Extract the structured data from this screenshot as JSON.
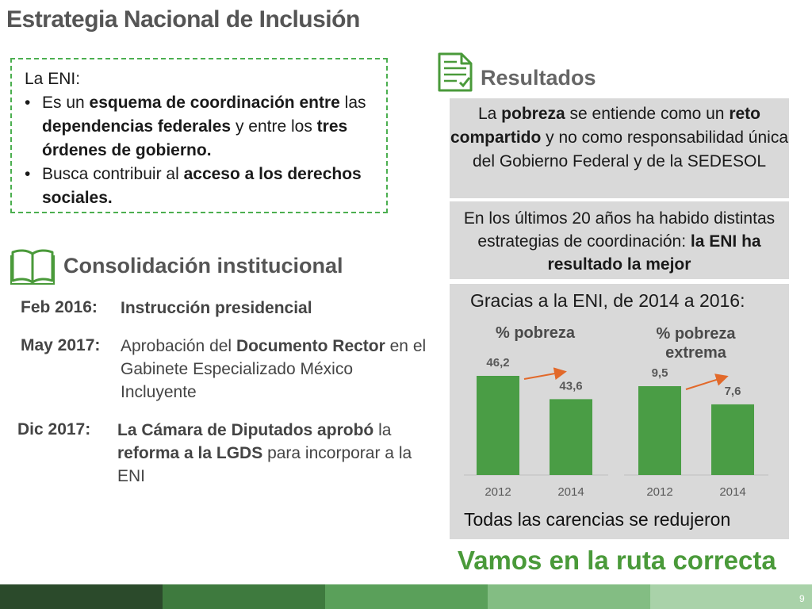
{
  "title": "Estrategia Nacional de Inclusión",
  "eni_box": {
    "heading": "La ENI:",
    "bullets": [
      [
        {
          "t": "Es un ",
          "b": false
        },
        {
          "t": "esquema de coordinación entre",
          "b": true
        },
        {
          "t": "  las ",
          "b": false
        },
        {
          "t": "dependencias federales",
          "b": true
        },
        {
          "t": " y entre los ",
          "b": false
        },
        {
          "t": "tres órdenes de gobierno.",
          "b": true
        }
      ],
      [
        {
          "t": "Busca contribuir al ",
          "b": false
        },
        {
          "t": "acceso a los derechos sociales.",
          "b": true
        }
      ]
    ]
  },
  "resultados": {
    "title": "Resultados",
    "box1": [
      {
        "t": "La ",
        "b": false
      },
      {
        "t": "pobreza",
        "b": true
      },
      {
        "t": " se entiende como un ",
        "b": false
      },
      {
        "t": "reto compartido",
        "b": true
      },
      {
        "t": " y no como responsabilidad única del Gobierno Federal y de la SEDESOL",
        "b": false
      }
    ],
    "box2": [
      {
        "t": "En los últimos 20 años ha habido distintas estrategias de coordinación: ",
        "b": false
      },
      {
        "t": "la ENI ha resultado la mejor",
        "b": true
      }
    ],
    "gracias": "Gracias a la ENI, de 2014 a 2016:",
    "todas": "Todas las carencias se redujeron",
    "ruta": "Vamos en la ruta correcta"
  },
  "consolidacion": {
    "title": "Consolidación institucional",
    "items": [
      {
        "date": "Feb 2016:",
        "text": [
          {
            "t": "Instrucción presidencial",
            "b": true
          }
        ]
      },
      {
        "date": "May 2017:",
        "text": [
          {
            "t": "Aprobación del ",
            "b": false
          },
          {
            "t": "Documento Rector",
            "b": true
          },
          {
            "t": " en el Gabinete Especializado México Incluyente",
            "b": false
          }
        ]
      },
      {
        "date": "Dic 2017:",
        "text": [
          {
            "t": "La Cámara de Diputados aprobó",
            "b": true
          },
          {
            "t": " la ",
            "b": false
          },
          {
            "t": "reforma a la LGDS",
            "b": true
          },
          {
            "t": " para incorporar a la ENI",
            "b": false
          }
        ]
      }
    ]
  },
  "chart_data": [
    {
      "type": "bar",
      "title": "% pobreza",
      "categories": [
        "2012",
        "2014"
      ],
      "values": [
        46.2,
        43.6
      ],
      "value_labels": [
        "46,2",
        "43,6"
      ]
    },
    {
      "type": "bar",
      "title": "% pobreza extrema",
      "categories": [
        "2012",
        "2014"
      ],
      "values": [
        9.5,
        7.6
      ],
      "value_labels": [
        "9,5",
        "7,6"
      ]
    }
  ],
  "colors": {
    "bar": "#4a9d45",
    "arrow": "#e2692a",
    "accent": "#4a9a3a",
    "gray_box": "#d9d9d9",
    "footer": [
      "#2b4a2b",
      "#3e7a3e",
      "#5aa05a",
      "#83bd83",
      "#a9d2a9"
    ]
  },
  "icons": {
    "resultados": "checklist-icon",
    "consolidacion": "open-book-icon"
  },
  "page_number": "9"
}
